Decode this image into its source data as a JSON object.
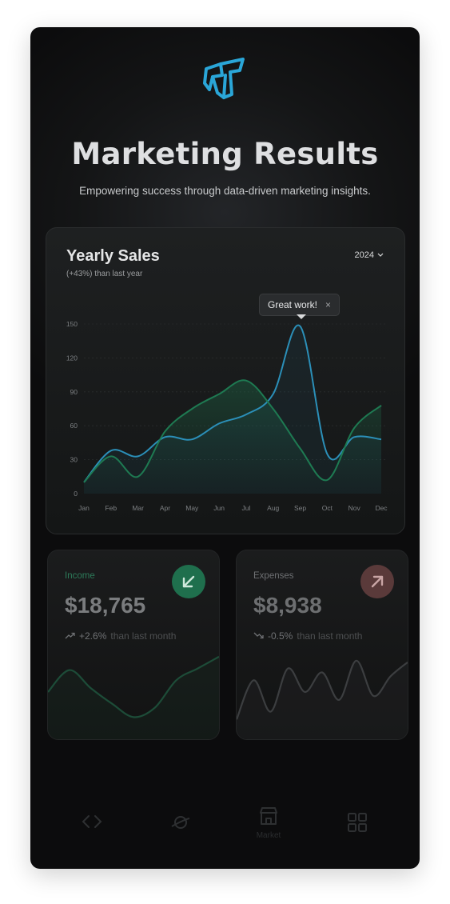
{
  "header": {
    "title": "Marketing Results",
    "subtitle": "Empowering success through data-driven marketing insights."
  },
  "sales_card": {
    "title": "Yearly Sales",
    "subtitle": "(+43%) than last year",
    "year": "2024",
    "tooltip": "Great work!",
    "tooltip_close": "×"
  },
  "chart_data": {
    "type": "line",
    "categories": [
      "Jan",
      "Feb",
      "Mar",
      "Apr",
      "May",
      "Jun",
      "Jul",
      "Aug",
      "Sep",
      "Oct",
      "Nov",
      "Dec"
    ],
    "y_ticks": [
      0,
      30,
      60,
      90,
      120,
      150
    ],
    "ylim": [
      0,
      150
    ],
    "series": [
      {
        "color": "#2b8fb8",
        "values": [
          10,
          38,
          33,
          50,
          48,
          62,
          70,
          88,
          148,
          35,
          50,
          48
        ]
      },
      {
        "color": "#1e7a52",
        "values": [
          10,
          33,
          15,
          55,
          75,
          88,
          100,
          75,
          40,
          12,
          58,
          78
        ]
      }
    ],
    "grid": true
  },
  "income": {
    "label": "Income",
    "amount": "$18,765",
    "delta": "+2.6%",
    "delta_text": "than last month",
    "trend": "up",
    "icon": "arrow-down-left-icon",
    "spark": [
      50,
      78,
      55,
      35,
      18,
      30,
      65,
      80,
      95
    ]
  },
  "expenses": {
    "label": "Expenses",
    "amount": "$8,938",
    "delta": "-0.5%",
    "delta_text": "than last month",
    "trend": "down",
    "icon": "arrow-up-right-icon",
    "spark": [
      15,
      65,
      25,
      80,
      50,
      75,
      40,
      90,
      45,
      70,
      88
    ]
  },
  "nav": {
    "items": [
      {
        "icon": "code-icon",
        "label": ""
      },
      {
        "icon": "planet-icon",
        "label": ""
      },
      {
        "icon": "store-icon",
        "label": "Market"
      },
      {
        "icon": "grid-icon",
        "label": ""
      }
    ]
  }
}
